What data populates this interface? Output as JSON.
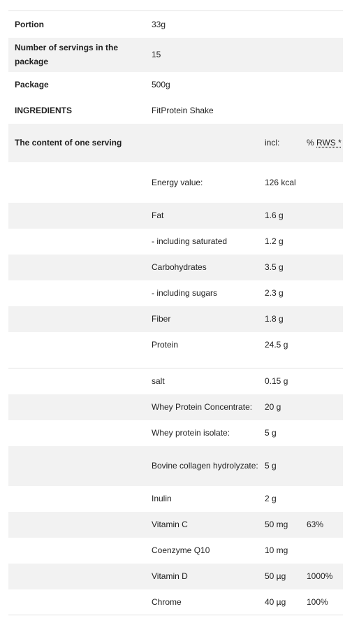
{
  "general": [
    {
      "label": "Portion",
      "value": "33g"
    },
    {
      "label": "Number of servings in the package",
      "value": "15"
    },
    {
      "label": "Package",
      "value": "500g"
    },
    {
      "label": "INGREDIENTS",
      "value": "FitProtein Shake"
    }
  ],
  "nutrition_header": {
    "label": "The content of one serving",
    "col_incl": "incl:",
    "col_rws_prefix": "% ",
    "col_rws": "RWS *"
  },
  "nutrition_rows": [
    {
      "name": "Energy value:",
      "amount": "126 kcal",
      "rws": ""
    },
    {
      "name": "Fat",
      "amount": "1.6 g",
      "rws": ""
    },
    {
      "name": "- including saturated",
      "amount": "1.2 g",
      "rws": ""
    },
    {
      "name": "Carbohydrates",
      "amount": "3.5 g",
      "rws": ""
    },
    {
      "name": "- including sugars",
      "amount": "2.3 g",
      "rws": ""
    },
    {
      "name": "Fiber",
      "amount": "1.8 g",
      "rws": ""
    },
    {
      "name": "Protein",
      "amount": "24.5 g",
      "rws": ""
    }
  ],
  "composition_rows": [
    {
      "name": "salt",
      "amount": "0.15 g",
      "rws": ""
    },
    {
      "name": "Whey Protein Concentrate:",
      "amount": "20 g",
      "rws": ""
    },
    {
      "name": "Whey protein isolate:",
      "amount": "5 g",
      "rws": ""
    },
    {
      "name": "Bovine collagen hydrolyzate:",
      "amount": "5 g",
      "rws": ""
    },
    {
      "name": "Inulin",
      "amount": "2 g",
      "rws": ""
    },
    {
      "name": "Vitamin C",
      "amount": "50 mg",
      "rws": "63%"
    },
    {
      "name": "Coenzyme Q10",
      "amount": "10 mg",
      "rws": ""
    },
    {
      "name": "Vitamin D",
      "amount": "50 µg",
      "rws": "1000%"
    },
    {
      "name": "Chrome",
      "amount": "40 µg",
      "rws": "100%"
    }
  ]
}
